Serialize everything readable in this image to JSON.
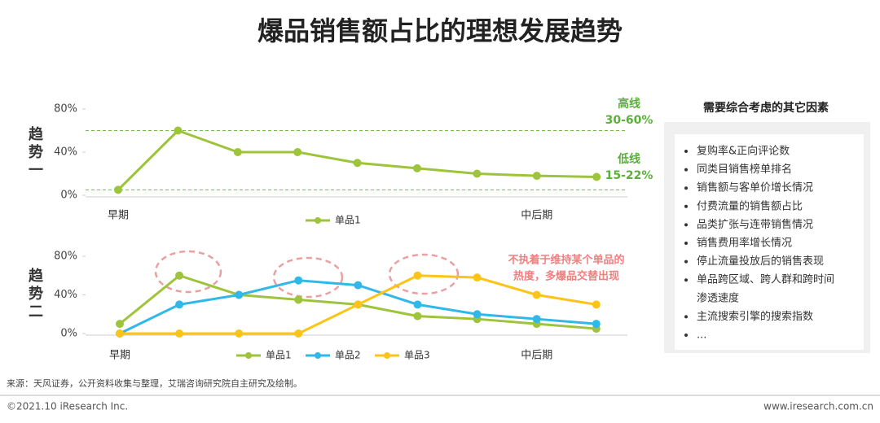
{
  "title": "爆品销售额占比的理想发展趋势",
  "chart_data": [
    {
      "type": "line",
      "y_label": "趋势一",
      "categories": [
        "早期",
        null,
        null,
        null,
        null,
        null,
        null,
        "中后期",
        null
      ],
      "series": [
        {
          "name": "单品1",
          "color": "#9dc43a",
          "values": [
            5,
            60,
            40,
            40,
            30,
            25,
            20,
            18,
            17
          ]
        }
      ],
      "ylim": [
        0,
        80
      ],
      "yticks": [
        {
          "value": 0,
          "label": "0%"
        },
        {
          "value": 40,
          "label": "40%"
        },
        {
          "value": 80,
          "label": "80%"
        }
      ],
      "reference_lines": [
        60,
        5
      ],
      "reference_color": "#6cbf4a",
      "annotations": [
        [
          "高线",
          "30-60%"
        ],
        [
          "低线",
          "15-22%"
        ]
      ],
      "annotation_color": "#5bb03a",
      "legend": "bottom",
      "grid": false
    },
    {
      "type": "line",
      "y_label": "趋势二",
      "categories": [
        "早期",
        null,
        null,
        null,
        null,
        null,
        null,
        "中后期",
        null
      ],
      "series": [
        {
          "name": "单品1",
          "color": "#9dc43a",
          "values": [
            10,
            60,
            40,
            35,
            30,
            18,
            15,
            10,
            5
          ]
        },
        {
          "name": "单品2",
          "color": "#2fb8e8",
          "values": [
            0,
            30,
            40,
            55,
            50,
            30,
            20,
            15,
            10
          ]
        },
        {
          "name": "单品3",
          "color": "#fcc419",
          "values": [
            0,
            0,
            0,
            0,
            30,
            60,
            58,
            40,
            30
          ]
        }
      ],
      "ylim": [
        0,
        80
      ],
      "yticks": [
        {
          "value": 0,
          "label": "0%"
        },
        {
          "value": 40,
          "label": "40%"
        },
        {
          "value": 80,
          "label": "80%"
        }
      ],
      "annotations": [
        [
          "不执着于维持某个单品的",
          "热度，多爆品交替出现"
        ]
      ],
      "annotation_color": "#f08080",
      "legend": "bottom",
      "grid": false
    }
  ],
  "side_panel": {
    "title": "需要综合考虑的其它因素",
    "bullets": [
      "复购率&正向评论数",
      "同类目销售榜单排名",
      "销售额与客单价增长情况",
      "付费流量的销售额占比",
      "品类扩张与连带销售情况",
      "销售费用率增长情况",
      "停止流量投放后的销售表现",
      [
        "单品跨区域、跨人群和跨时间",
        "渗透速度"
      ],
      "主流搜索引擎的搜索指数",
      "..."
    ]
  },
  "source": "来源：天风证券，公开资料收集与整理，艾瑞咨询研究院自主研究及绘制。",
  "footer": {
    "left": "©2021.10 iResearch Inc.",
    "right": "www.iresearch.com.cn"
  }
}
